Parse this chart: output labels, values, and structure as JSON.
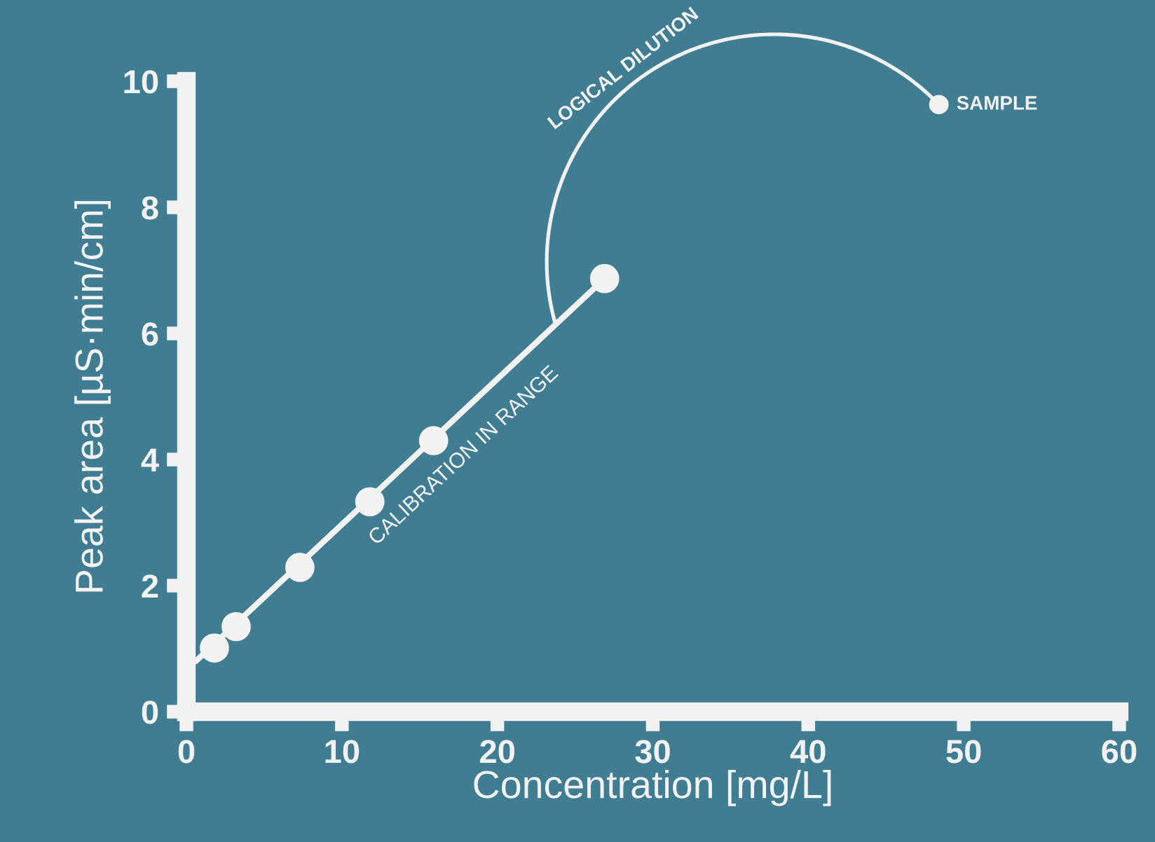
{
  "chart_data": {
    "type": "scatter",
    "xlabel": "Concentration [mg/L]",
    "ylabel": "Peak area [µS·min/cm]",
    "xlim": [
      0,
      60
    ],
    "ylim": [
      0,
      10
    ],
    "xticks": [
      0,
      10,
      20,
      30,
      40,
      50,
      60
    ],
    "yticks": [
      0,
      2,
      4,
      6,
      8,
      10
    ],
    "grid": false,
    "series": [
      {
        "type": "line",
        "color": "#f2f2f2",
        "x": [
          0.6,
          26.9
        ],
        "values": [
          0.8,
          6.87
        ],
        "marker": "none"
      },
      {
        "color": "#f2f2f2",
        "x": [
          1.8,
          3.2,
          7.3,
          11.8,
          15.9,
          26.9
        ],
        "values": [
          1.01,
          1.35,
          2.29,
          3.33,
          4.3,
          6.87
        ],
        "marker": "circle"
      },
      {
        "color": "#f2f2f2",
        "x": [
          48.4
        ],
        "values": [
          9.63
        ],
        "marker": "circle"
      }
    ],
    "annotations": [
      "CALIBRATION IN RANGE",
      "LOGICAL DILUTION",
      {
        "text": "SAMPLE",
        "x": 48.4,
        "y": 9.63
      }
    ]
  }
}
